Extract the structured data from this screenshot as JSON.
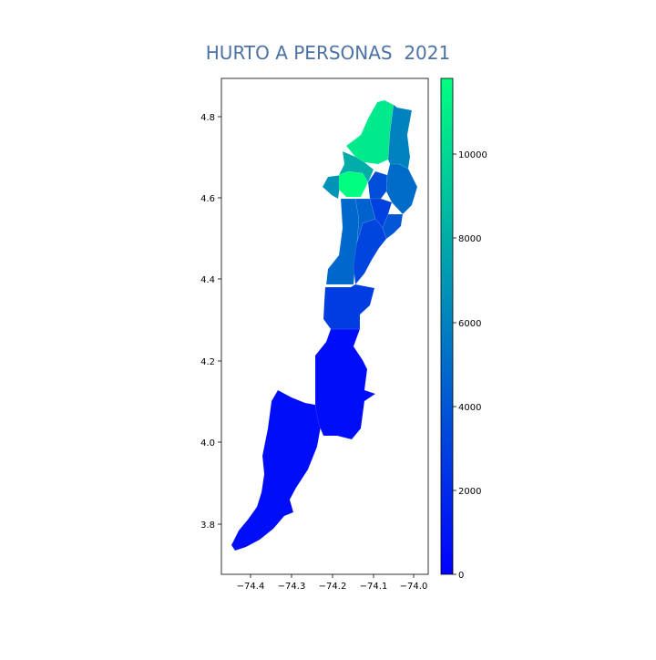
{
  "figure": {
    "title": "HURTO A PERSONAS  2021",
    "title_color": "#4c72a4"
  },
  "map_axes": {
    "x_ticks": [
      "−74.4",
      "−74.3",
      "−74.2",
      "−74.1",
      "−74.0"
    ],
    "y_ticks": [
      "3.8",
      "4.0",
      "4.2",
      "4.4",
      "4.6",
      "4.8"
    ],
    "x_range": [
      -74.47,
      -73.97
    ],
    "y_range": [
      3.68,
      4.9
    ]
  },
  "colorbar": {
    "colormap": "winter",
    "color_min": "#0000ff",
    "color_max": "#00ff80",
    "range": [
      0,
      11800
    ],
    "ticks": [
      "0",
      "2000",
      "4000",
      "6000",
      "8000",
      "10000"
    ]
  },
  "regions": [
    {
      "value": 600
    },
    {
      "value": 600
    },
    {
      "value": 2800
    },
    {
      "value": 4800
    },
    {
      "value": 3200
    },
    {
      "value": 4600
    },
    {
      "value": 6800
    },
    {
      "value": 10800
    },
    {
      "value": 11800
    },
    {
      "value": 6000
    },
    {
      "value": 5000
    },
    {
      "value": 3600
    },
    {
      "value": 3000
    },
    {
      "value": 4000
    },
    {
      "value": 8000
    }
  ]
}
